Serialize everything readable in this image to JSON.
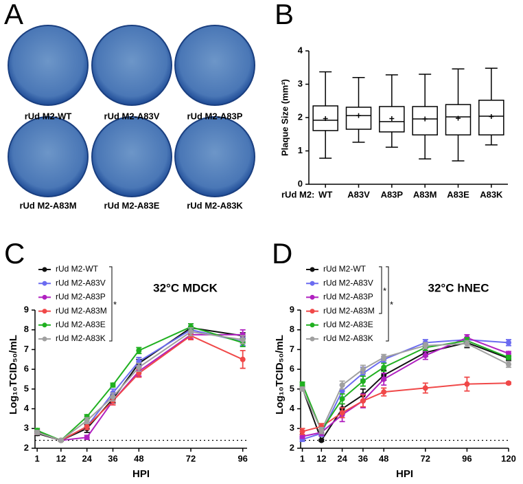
{
  "panel_a": {
    "letter": "A",
    "labels": [
      "rUd M2-WT",
      "rUd M2-A83V",
      "rUd M2-A83P",
      "rUd M2-A83M",
      "rUd M2-A83E",
      "rUd M2-A83K"
    ]
  },
  "chart_data": [
    {
      "type": "box",
      "panel": "B",
      "ylabel": "Plaque Size (mm²)",
      "category_label": "rUd M2:",
      "categories": [
        "WT",
        "A83V",
        "A83P",
        "A83M",
        "A83E",
        "A83K"
      ],
      "min": [
        0.78,
        1.26,
        1.11,
        0.76,
        0.7,
        1.18
      ],
      "q1": [
        1.61,
        1.65,
        1.57,
        1.48,
        1.48,
        1.48
      ],
      "median": [
        1.92,
        2.06,
        1.88,
        1.96,
        2.02,
        2.04
      ],
      "q3": [
        2.35,
        2.31,
        2.33,
        2.33,
        2.39,
        2.52
      ],
      "max": [
        3.37,
        3.2,
        3.28,
        3.3,
        3.46,
        3.48
      ],
      "mean": [
        1.97,
        2.06,
        1.97,
        1.96,
        1.98,
        2.03
      ],
      "ylim": [
        0,
        4
      ],
      "yticks": [
        0,
        1,
        2,
        3,
        4
      ]
    },
    {
      "type": "line",
      "panel": "C",
      "title": "32°C MDCK",
      "xlabel": "HPI",
      "ylabel": "Log₁₀TCID₅₀/mL",
      "x": [
        1,
        12,
        24,
        36,
        48,
        72,
        96
      ],
      "xlim": [
        0,
        98
      ],
      "xticks": [
        1,
        12,
        24,
        36,
        48,
        72,
        96
      ],
      "ylim": [
        2,
        9
      ],
      "yticks": [
        2,
        3,
        4,
        5,
        6,
        7,
        8,
        9
      ],
      "reference_line": 2.4,
      "annotations": [
        "*"
      ],
      "series": [
        {
          "name": "rUd M2-WT",
          "color": "#111111",
          "values": [
            2.75,
            2.4,
            3.0,
            4.5,
            6.3,
            8.1,
            7.7
          ],
          "errors": [
            0.1,
            0.05,
            0.2,
            0.2,
            0.2,
            0.2,
            0.15
          ]
        },
        {
          "name": "rUd M2-A83V",
          "color": "#6b6bf0",
          "values": [
            2.8,
            2.4,
            3.1,
            4.8,
            6.4,
            8.0,
            7.4
          ],
          "errors": [
            0.1,
            0.05,
            0.15,
            0.2,
            0.2,
            0.2,
            0.2
          ]
        },
        {
          "name": "rUd M2-A83P",
          "color": "#b020c0",
          "values": [
            2.85,
            2.4,
            2.55,
            4.4,
            5.9,
            7.75,
            7.75
          ],
          "errors": [
            0.1,
            0.05,
            0.1,
            0.2,
            0.25,
            0.2,
            0.25
          ]
        },
        {
          "name": "rUd M2-A83M",
          "color": "#f04848",
          "values": [
            2.8,
            2.4,
            3.1,
            4.4,
            5.8,
            7.7,
            6.5
          ],
          "errors": [
            0.1,
            0.05,
            0.15,
            0.2,
            0.2,
            0.2,
            0.45
          ]
        },
        {
          "name": "rUd M2-A83E",
          "color": "#20b020",
          "values": [
            2.9,
            2.4,
            3.6,
            5.2,
            6.95,
            8.15,
            7.35
          ],
          "errors": [
            0.1,
            0.05,
            0.1,
            0.1,
            0.15,
            0.15,
            0.2
          ]
        },
        {
          "name": "rUd M2-A83K",
          "color": "#a0a0a0",
          "values": [
            2.8,
            2.4,
            3.4,
            4.6,
            6.1,
            7.9,
            7.5
          ],
          "errors": [
            0.1,
            0.05,
            0.15,
            0.2,
            0.2,
            0.2,
            0.2
          ]
        }
      ]
    },
    {
      "type": "line",
      "panel": "D",
      "title": "32°C hNEC",
      "xlabel": "HPI",
      "ylabel": "Log₁₀TCID₅₀/mL",
      "x": [
        1,
        12,
        24,
        36,
        48,
        72,
        96,
        120
      ],
      "xlim": [
        0,
        120
      ],
      "xticks": [
        1,
        12,
        24,
        36,
        48,
        72,
        96,
        120
      ],
      "ylim": [
        2,
        9
      ],
      "yticks": [
        2,
        3,
        4,
        5,
        6,
        7,
        8,
        9
      ],
      "reference_line": 2.4,
      "annotations": [
        "*",
        "*"
      ],
      "series": [
        {
          "name": "rUd M2-WT",
          "color": "#111111",
          "values": [
            5.05,
            2.4,
            4.0,
            4.7,
            5.7,
            6.85,
            7.35,
            6.55
          ],
          "errors": [
            0.1,
            0.05,
            0.25,
            0.3,
            0.25,
            0.2,
            0.25,
            0.1
          ]
        },
        {
          "name": "rUd M2-A83V",
          "color": "#6b6bf0",
          "values": [
            2.45,
            2.75,
            4.9,
            5.8,
            6.5,
            7.35,
            7.5,
            7.35
          ],
          "errors": [
            0.1,
            0.15,
            0.3,
            0.3,
            0.15,
            0.15,
            0.1,
            0.15
          ]
        },
        {
          "name": "rUd M2-A83P",
          "color": "#b020c0",
          "values": [
            2.6,
            2.8,
            3.7,
            4.4,
            5.5,
            6.7,
            7.6,
            6.8
          ],
          "errors": [
            0.1,
            0.15,
            0.35,
            0.35,
            0.3,
            0.2,
            0.15,
            0.1
          ]
        },
        {
          "name": "rUd M2-A83M",
          "color": "#f04848",
          "values": [
            2.85,
            3.1,
            3.8,
            4.4,
            4.85,
            5.05,
            5.25,
            5.3
          ],
          "errors": [
            0.15,
            0.15,
            0.25,
            0.3,
            0.2,
            0.25,
            0.35,
            0.05
          ]
        },
        {
          "name": "rUd M2-A83E",
          "color": "#20b020",
          "values": [
            5.25,
            2.9,
            4.5,
            5.4,
            6.1,
            7.1,
            7.45,
            6.6
          ],
          "errors": [
            0.1,
            0.15,
            0.25,
            0.25,
            0.2,
            0.15,
            0.15,
            0.1
          ]
        },
        {
          "name": "rUd M2-A83K",
          "color": "#a0a0a0",
          "values": [
            5.0,
            2.9,
            5.2,
            6.0,
            6.6,
            7.2,
            7.3,
            6.25
          ],
          "errors": [
            0.1,
            0.15,
            0.2,
            0.2,
            0.15,
            0.15,
            0.15,
            0.15
          ]
        }
      ]
    }
  ]
}
